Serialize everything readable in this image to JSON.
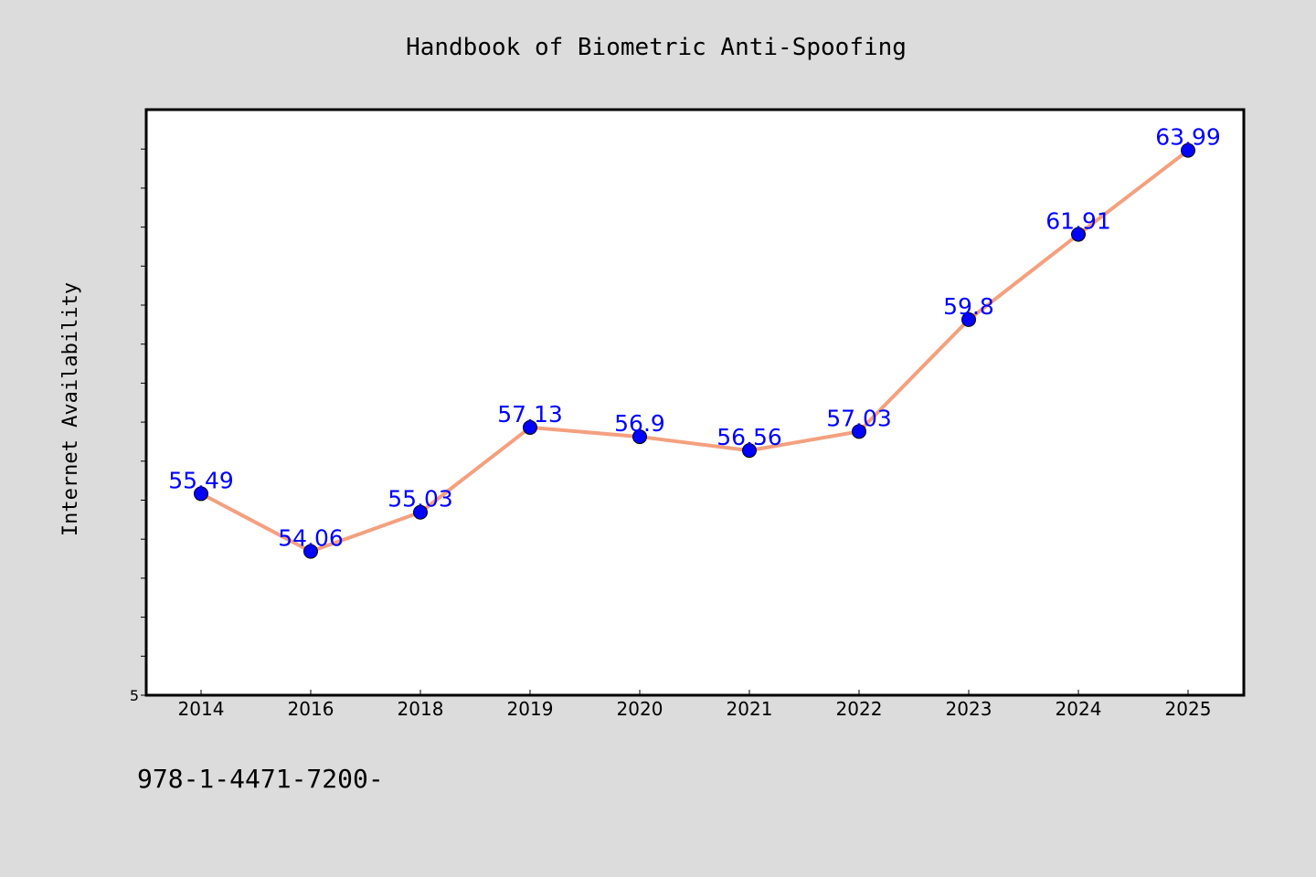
{
  "title": "Handbook of Biometric Anti-Spoofing",
  "footer_text": "978-1-4471-7200-",
  "colors": {
    "background": "#dcdcdc",
    "plot_background": "#ffffff",
    "line": "#f4a07e",
    "marker": "#0000ff",
    "label": "#0000ff",
    "text": "#000000"
  },
  "chart_data": {
    "type": "line",
    "categories": [
      "2014",
      "2016",
      "2018",
      "2019",
      "2020",
      "2021",
      "2022",
      "2023",
      "2024",
      "2025"
    ],
    "series": [
      {
        "values": [
          55.49,
          54.06,
          55.03,
          57.13,
          56.9,
          56.56,
          57.03,
          59.8,
          61.91,
          63.99
        ]
      }
    ],
    "data_labels": [
      "55.49",
      "54.06",
      "55.03",
      "57.13",
      "56.9",
      "56.56",
      "57.03",
      "59.8",
      "61.91",
      "63.99"
    ],
    "ylabel": "Internet Availability",
    "y_tick_labels": [
      "5"
    ],
    "ylim": [
      50.5,
      65
    ],
    "grid": false,
    "legend": "none"
  }
}
